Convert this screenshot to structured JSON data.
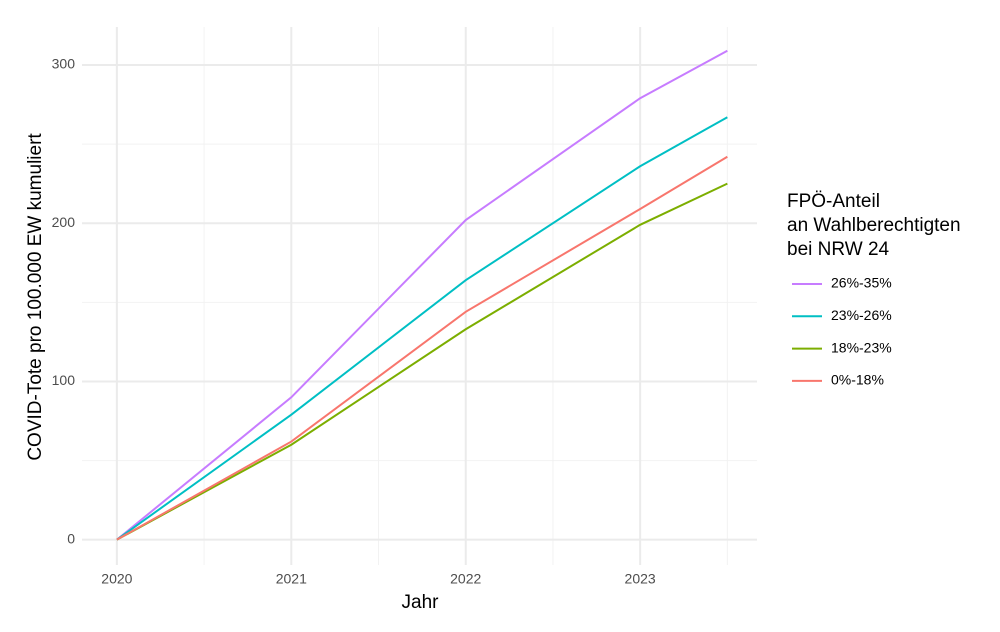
{
  "chart_data": {
    "type": "line",
    "x_label": "Jahr",
    "y_label": "COVID-Tote pro 100.000 EW kumuliert",
    "legend_title": [
      "FPÖ-Anteil",
      "an Wahlberechtigten",
      "bei NRW 24"
    ],
    "legend_position": "right",
    "x": [
      2020,
      2021,
      2022,
      2023,
      2023.5
    ],
    "series": [
      {
        "name": "26%-35%",
        "color": "#C77CFF",
        "values": [
          0,
          90,
          202,
          279,
          309
        ]
      },
      {
        "name": "23%-26%",
        "color": "#00BFC4",
        "values": [
          0,
          79,
          164,
          236,
          267
        ]
      },
      {
        "name": "18%-23%",
        "color": "#7CAE00",
        "values": [
          0,
          60,
          133,
          199,
          225
        ]
      },
      {
        "name": "0%-18%",
        "color": "#F8766D",
        "values": [
          0,
          62,
          144,
          209,
          242
        ]
      }
    ],
    "xlim": [
      2019.8,
      2023.67
    ],
    "ylim": [
      -16,
      324
    ],
    "xticks": [
      2020,
      2021,
      2022,
      2023
    ],
    "yticks": [
      0,
      100,
      200,
      300
    ],
    "grid": true,
    "minor_grid": true
  }
}
